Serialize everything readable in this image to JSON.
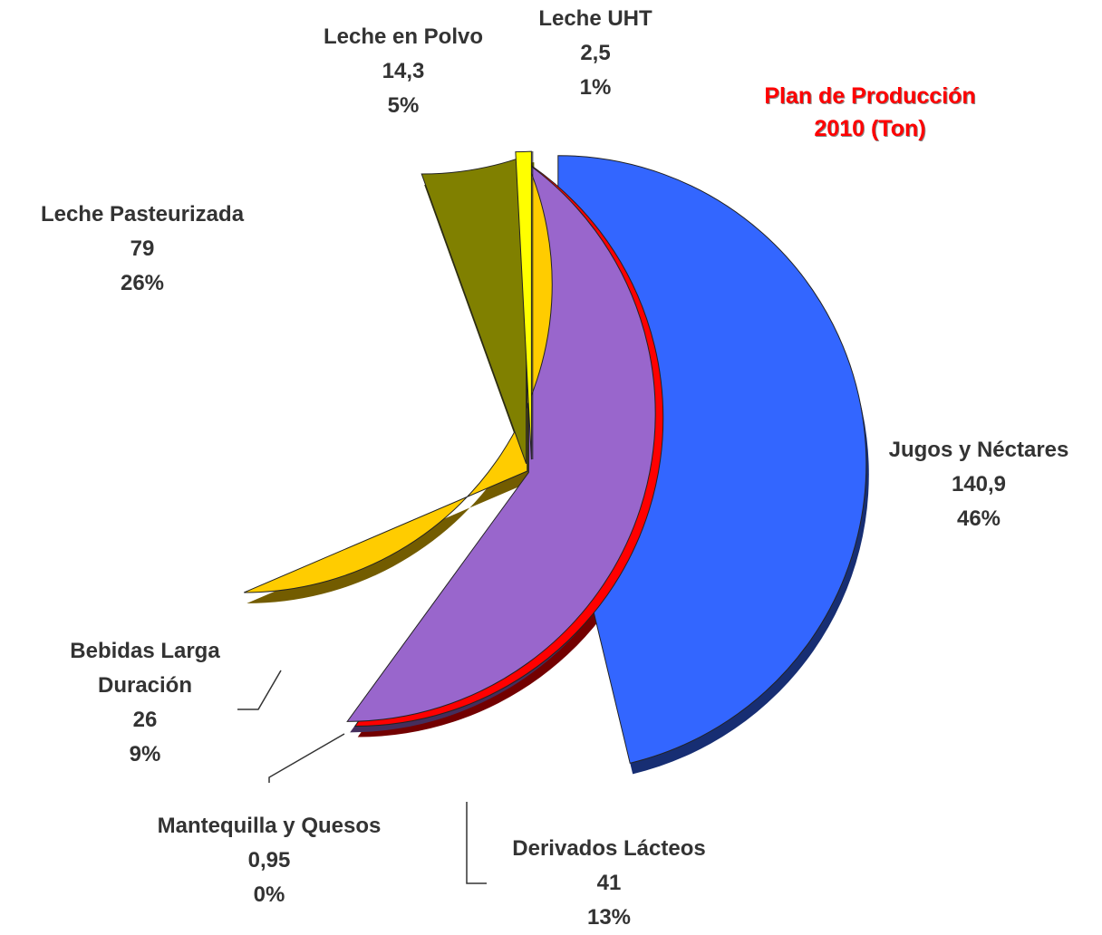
{
  "chart_data": {
    "type": "pie",
    "title": "Plan de Producción 2010 (Ton)",
    "categories": [
      "Jugos y Néctares",
      "Derivados Lácteos",
      "Mantequilla y Quesos",
      "Bebidas Larga Duración",
      "Leche Pasteurizada",
      "Leche en Polvo",
      "Leche UHT"
    ],
    "values": [
      140.9,
      41,
      0.95,
      26,
      79,
      14.3,
      2.5
    ],
    "value_labels": [
      "140,9",
      "41",
      "0,95",
      "26",
      "79",
      "14,3",
      "2,5"
    ],
    "percent_labels": [
      "46%",
      "13%",
      "0%",
      "9%",
      "26%",
      "5%",
      "1%"
    ],
    "colors": [
      "#3366ff",
      "#ff0000",
      "#9966cc",
      "#ffcc00",
      "#808000",
      "#ffff00",
      "#00ffff"
    ]
  }
}
